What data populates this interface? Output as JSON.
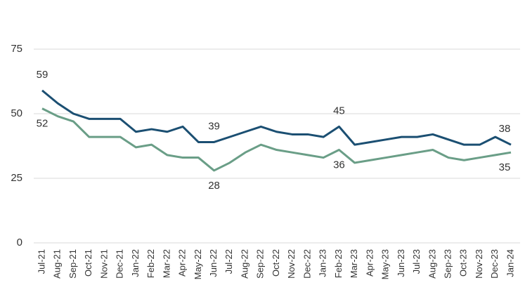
{
  "chart_data": {
    "type": "line",
    "categories": [
      "Jul-21",
      "Aug-21",
      "Sep-21",
      "Oct-21",
      "Nov-21",
      "Dec-21",
      "Jan-22",
      "Feb-22",
      "Mar-22",
      "Apr-22",
      "May-22",
      "Jun-22",
      "Jul-22",
      "Aug-22",
      "Sep-22",
      "Oct-22",
      "Nov-22",
      "Dec-22",
      "Jan-23",
      "Feb-23",
      "Mar-23",
      "Apr-23",
      "May-23",
      "Jun-23",
      "Jul-23",
      "Aug-23",
      "Sep-23",
      "Oct-23",
      "Nov-23",
      "Dec-23",
      "Jan-24"
    ],
    "series": [
      {
        "color": "#1b4f72",
        "values": [
          59,
          54,
          50,
          48,
          48,
          48,
          43,
          44,
          43,
          45,
          39,
          39,
          41,
          43,
          45,
          43,
          42,
          42,
          41,
          45,
          38,
          39,
          40,
          41,
          41,
          42,
          40,
          38,
          38,
          41,
          38
        ],
        "value_labels": [
          "59",
          null,
          null,
          null,
          null,
          null,
          null,
          null,
          null,
          null,
          null,
          "39",
          null,
          null,
          null,
          null,
          null,
          null,
          null,
          "45",
          null,
          null,
          null,
          null,
          null,
          null,
          null,
          null,
          null,
          null,
          "38"
        ]
      },
      {
        "color": "#6a9e87",
        "values": [
          52,
          49,
          47,
          41,
          41,
          41,
          37,
          38,
          34,
          33,
          33,
          28,
          31,
          35,
          38,
          36,
          35,
          34,
          33,
          36,
          31,
          32,
          33,
          34,
          35,
          36,
          33,
          32,
          33,
          34,
          35
        ],
        "value_labels": [
          "52",
          null,
          null,
          null,
          null,
          null,
          null,
          null,
          null,
          null,
          null,
          "28",
          null,
          null,
          null,
          null,
          null,
          null,
          null,
          "36",
          null,
          null,
          null,
          null,
          null,
          null,
          null,
          null,
          null,
          null,
          "35"
        ]
      }
    ],
    "ylim": [
      0,
      75
    ],
    "yticks": [
      0,
      25,
      50,
      75
    ],
    "grid": true
  }
}
